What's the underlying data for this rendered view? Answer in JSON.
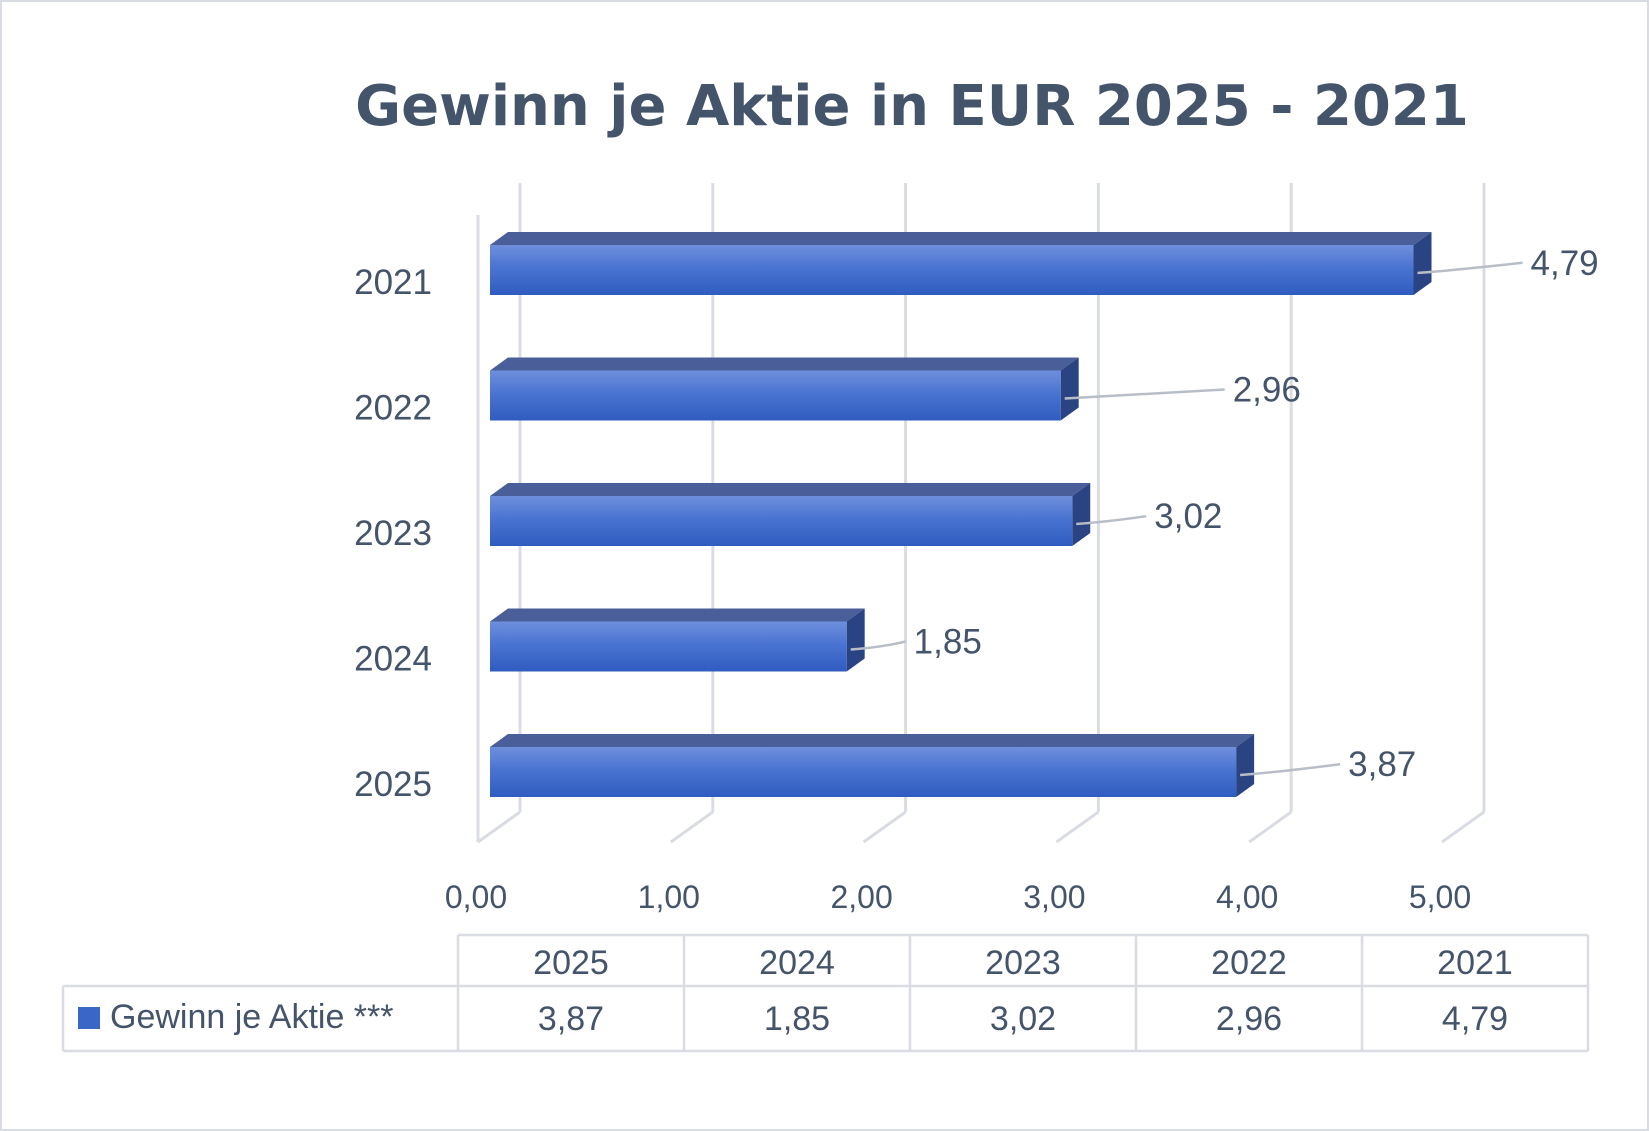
{
  "chart_data": {
    "type": "bar",
    "orientation": "horizontal",
    "title": "Gewinn je Aktie in EUR 2025 - 2021",
    "categories": [
      "2025",
      "2024",
      "2023",
      "2022",
      "2021"
    ],
    "series": [
      {
        "name": "Gewinn je Aktie ***",
        "values": [
          3.87,
          1.85,
          3.02,
          2.96,
          4.79
        ],
        "labels": [
          "3,87",
          "1,85",
          "3,02",
          "2,96",
          "4,79"
        ],
        "color": "#3a66c8"
      }
    ],
    "xlim": [
      0,
      5
    ],
    "xticks": [
      "0,00",
      "1,00",
      "2,00",
      "3,00",
      "4,00",
      "5,00"
    ],
    "grid": true,
    "data_table": {
      "header": [
        "2025",
        "2024",
        "2023",
        "2022",
        "2021"
      ],
      "row_label": "Gewinn je Aktie ***",
      "row_values": [
        "3,87",
        "1,85",
        "3,02",
        "2,96",
        "4,79"
      ]
    }
  },
  "colors": {
    "text": "#44546a",
    "grid": "#d9dde3",
    "bar_front": "#3a66c8",
    "bar_top": "#4a5f9a",
    "bar_side": "#2a4383"
  }
}
